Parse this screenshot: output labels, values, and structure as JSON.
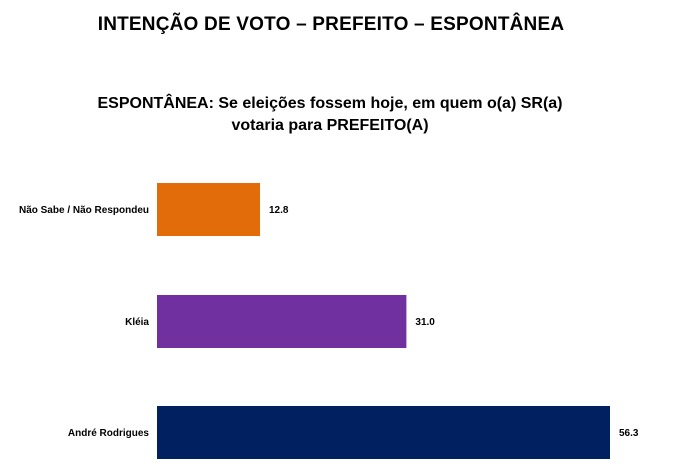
{
  "header": {
    "title": "INTENÇÃO DE VOTO – PREFEITO – ESPONTÂNEA"
  },
  "chart_data": {
    "type": "bar",
    "orientation": "horizontal",
    "title": "ESPONTÂNEA: Se eleições fossem hoje, em quem o(a) SR(a) votaria para PREFEITO(A)",
    "title_lines": [
      "ESPONTÂNEA: Se eleições fossem hoje, em quem o(a) SR(a)",
      "votaria para PREFEITO(A)"
    ],
    "categories": [
      "Não Sabe / Não Respondeu",
      "Kléia",
      "André Rodrigues"
    ],
    "values": [
      12.8,
      31.0,
      56.3
    ],
    "value_labels": [
      "12.8",
      "31.0",
      "56.3"
    ],
    "colors": [
      "#E36C0A",
      "#7030A0",
      "#002060"
    ],
    "xlim": [
      0,
      56.3
    ],
    "grid": false,
    "legend": "none"
  }
}
